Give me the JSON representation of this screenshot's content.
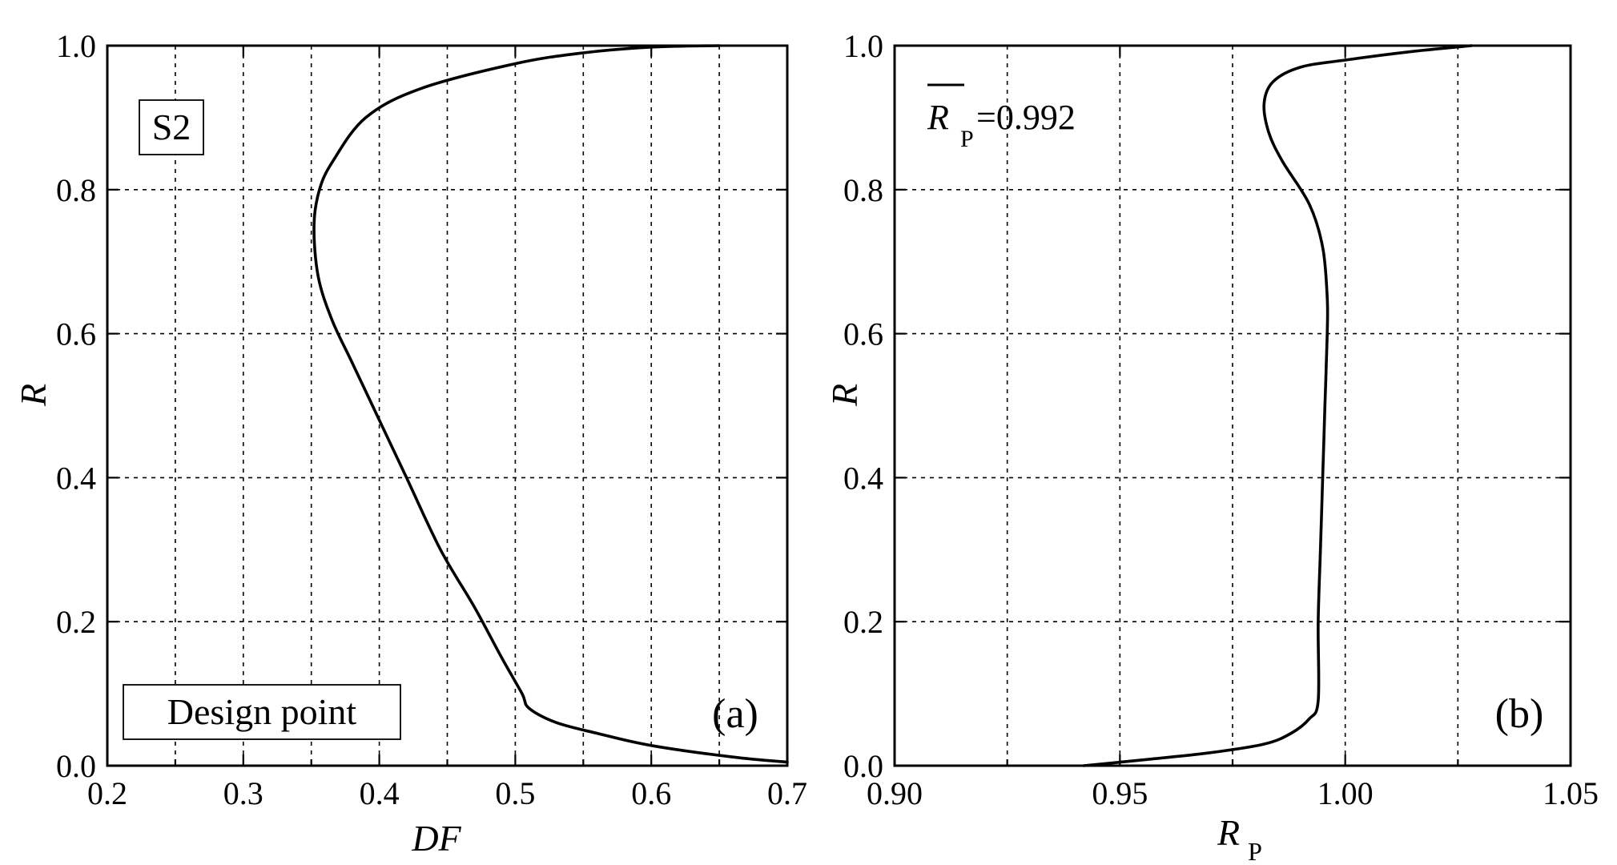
{
  "chart_data": [
    {
      "type": "line",
      "panel_label": "(a)",
      "xlabel": "DF",
      "ylabel": "R",
      "xlim": [
        0.2,
        0.7
      ],
      "ylim": [
        0.0,
        1.0
      ],
      "x_ticks": [
        "0.2",
        "0.3",
        "0.4",
        "0.5",
        "0.6",
        "0.7"
      ],
      "y_ticks": [
        "0.0",
        "0.2",
        "0.4",
        "0.6",
        "0.8",
        "1.0"
      ],
      "grid": true,
      "annotations": [
        "S2",
        "Design point"
      ],
      "series": [
        {
          "x": [
            0.7,
            0.66,
            0.6,
            0.56,
            0.53,
            0.51,
            0.505,
            0.49,
            0.47,
            0.445,
            0.42,
            0.4,
            0.38,
            0.365,
            0.355,
            0.352,
            0.356,
            0.366,
            0.39,
            0.43,
            0.5,
            0.55,
            0.6,
            0.65
          ],
          "y": [
            0.005,
            0.012,
            0.028,
            0.045,
            0.06,
            0.08,
            0.1,
            0.15,
            0.22,
            0.3,
            0.4,
            0.48,
            0.56,
            0.62,
            0.68,
            0.75,
            0.8,
            0.84,
            0.9,
            0.94,
            0.975,
            0.99,
            0.998,
            1.0
          ]
        }
      ]
    },
    {
      "type": "line",
      "panel_label": "(b)",
      "xlabel": "R",
      "xlabel_subscript": "P",
      "ylabel": "R",
      "xlim": [
        0.9,
        1.05
      ],
      "ylim": [
        0.0,
        1.0
      ],
      "x_ticks": [
        "0.90",
        "0.95",
        "1.00",
        "1.05"
      ],
      "y_ticks": [
        "0.0",
        "0.2",
        "0.4",
        "0.6",
        "0.8",
        "1.0"
      ],
      "grid": true,
      "annotations": [
        "R",
        "P",
        "=0.992"
      ],
      "series": [
        {
          "x": [
            0.942,
            0.955,
            0.97,
            0.982,
            0.988,
            0.992,
            0.994,
            0.994,
            0.9945,
            0.995,
            0.9955,
            0.996,
            0.996,
            0.995,
            0.992,
            0.986,
            0.983,
            0.982,
            0.984,
            0.99,
            1.0,
            1.015,
            1.028
          ],
          "y": [
            0.0,
            0.008,
            0.018,
            0.03,
            0.045,
            0.065,
            0.09,
            0.2,
            0.3,
            0.4,
            0.5,
            0.6,
            0.65,
            0.72,
            0.78,
            0.84,
            0.88,
            0.92,
            0.95,
            0.97,
            0.98,
            0.992,
            1.0
          ]
        }
      ]
    }
  ]
}
